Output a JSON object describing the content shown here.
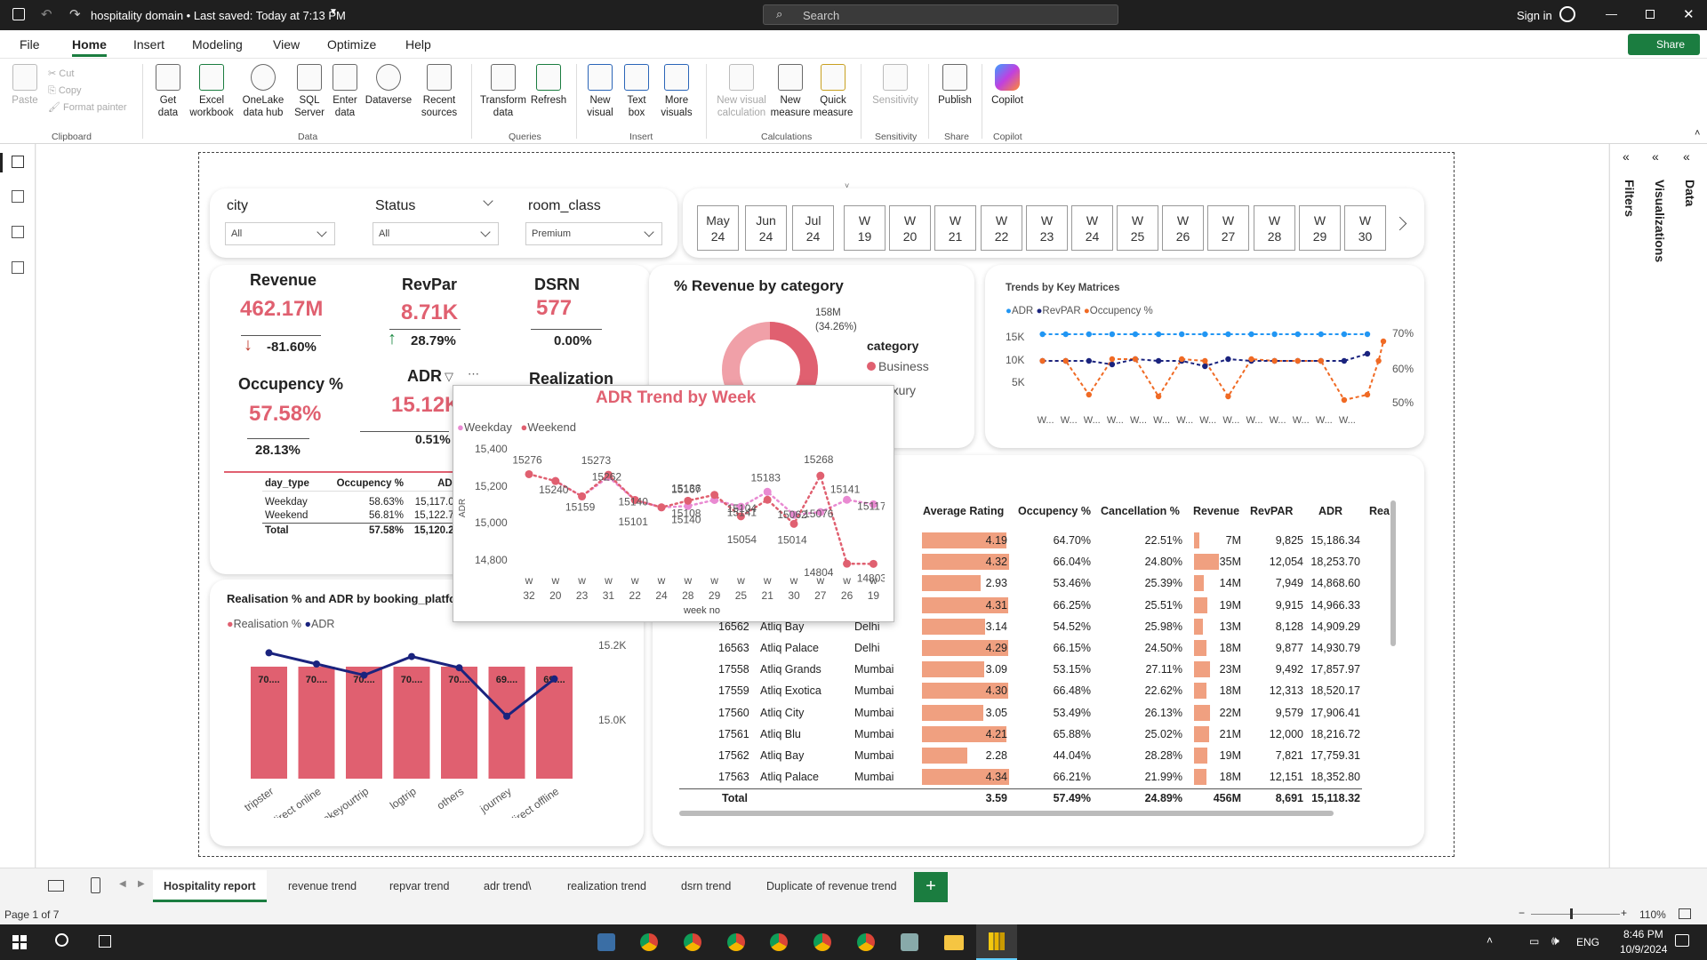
{
  "titlebar": {
    "title": "hospitality domain • Last saved: Today at 7:13 PM",
    "search": "Search",
    "signin": "Sign in",
    "share": "Share"
  },
  "tabs": [
    "File",
    "Home",
    "Insert",
    "Modeling",
    "View",
    "Optimize",
    "Help"
  ],
  "ribbon": {
    "clipboard": {
      "paste": "Paste",
      "cut": "Cut",
      "copy": "Copy",
      "format_painter": "Format painter",
      "label": "Clipboard"
    },
    "data": {
      "get_data": "Get data",
      "excel": "Excel workbook",
      "onelake": "OneLake data hub",
      "sql": "SQL Server",
      "enter": "Enter data",
      "dataverse": "Dataverse",
      "recent": "Recent sources",
      "label": "Data"
    },
    "queries": {
      "transform": "Transform data",
      "refresh": "Refresh",
      "label": "Queries"
    },
    "insert": {
      "new_visual": "New visual",
      "text_box": "Text box",
      "more_visuals": "More visuals",
      "label": "Insert"
    },
    "calculations": {
      "new_visual_calc": "New visual calculation",
      "new_measure": "New measure",
      "quick_measure": "Quick measure",
      "label": "Calculations"
    },
    "sensitivity": {
      "btn": "Sensitivity",
      "label": "Sensitivity"
    },
    "share": {
      "publish": "Publish",
      "label": "Share"
    },
    "copilot": {
      "btn": "Copilot",
      "label": "Copilot"
    }
  },
  "slicers": {
    "city": {
      "label": "city",
      "value": "All"
    },
    "status": {
      "label": "Status",
      "value": "All"
    },
    "room_class": {
      "label": "room_class",
      "value": "Premium"
    }
  },
  "weeks": [
    {
      "l1": "May",
      "l2": "24"
    },
    {
      "l1": "Jun",
      "l2": "24"
    },
    {
      "l1": "Jul",
      "l2": "24"
    },
    {
      "l1": "W",
      "l2": "19"
    },
    {
      "l1": "W",
      "l2": "20"
    },
    {
      "l1": "W",
      "l2": "21"
    },
    {
      "l1": "W",
      "l2": "22"
    },
    {
      "l1": "W",
      "l2": "23"
    },
    {
      "l1": "W",
      "l2": "24"
    },
    {
      "l1": "W",
      "l2": "25"
    },
    {
      "l1": "W",
      "l2": "26"
    },
    {
      "l1": "W",
      "l2": "27"
    },
    {
      "l1": "W",
      "l2": "28"
    },
    {
      "l1": "W",
      "l2": "29"
    },
    {
      "l1": "W",
      "l2": "30"
    }
  ],
  "kpis": {
    "revenue": {
      "title": "Revenue",
      "value": "462.17M",
      "change": "-81.60%"
    },
    "revpar": {
      "title": "RevPar",
      "value": "8.71K",
      "change": "28.79%"
    },
    "dsrn": {
      "title": "DSRN",
      "value": "577",
      "change": "0.00%"
    },
    "occupancy": {
      "title": "Occupency %",
      "value": "57.58%",
      "change": "28.13%"
    },
    "adr": {
      "title": "ADR",
      "value": "15.12K",
      "change": "0.51%"
    },
    "realization": {
      "title": "Realization"
    }
  },
  "day_table": {
    "headers": [
      "day_type",
      "Occupency %",
      "ADR"
    ],
    "rows": [
      [
        "Weekday",
        "58.63%",
        "15,117.06"
      ],
      [
        "Weekend",
        "56.81%",
        "15,122.72"
      ]
    ],
    "total": [
      "Total",
      "57.58%",
      "15,120.28"
    ]
  },
  "donut": {
    "title": "% Revenue by category",
    "legend_title": "category",
    "label": "158M",
    "label_pct": "(34.26%)",
    "items": [
      "Business",
      "Luxury"
    ],
    "colors": [
      "#e06070",
      "#f0a0a8"
    ]
  },
  "trends": {
    "title": "Trends by Key Matrices",
    "legend": [
      "ADR",
      "RevPAR",
      "Occupency %"
    ],
    "y_left": [
      "15K",
      "10K",
      "5K"
    ],
    "y_right": [
      "70%",
      "60%",
      "50%"
    ],
    "xlabel": "W..."
  },
  "adr_trend": {
    "title": "ADR Trend by Week",
    "legend": [
      "Weekday",
      "Weekend"
    ],
    "ylabel": "ADR",
    "xlabel": "week no",
    "yticks": [
      "15,400",
      "15,200",
      "15,000",
      "14,800"
    ]
  },
  "realisation": {
    "title": "Realisation % and ADR by booking_platform",
    "legend": [
      "Realisation %",
      "ADR"
    ],
    "y_right": [
      "15.2K",
      "15.0K"
    ]
  },
  "hotel_table": {
    "headers": [
      "Average Rating",
      "Occupency %",
      "Cancellation %",
      "Revenue",
      "RevPAR",
      "ADR",
      "Rea"
    ],
    "rows": [
      {
        "id": "",
        "name": "",
        "city": "",
        "rating": "4.19",
        "occ": "64.70%",
        "canc": "22.51%",
        "rev": "7M",
        "revpar": "9,825",
        "adr": "15,186.34"
      },
      {
        "id": "",
        "name": "",
        "city": "i",
        "rating": "4.32",
        "occ": "66.04%",
        "canc": "24.80%",
        "rev": "35M",
        "revpar": "12,054",
        "adr": "18,253.70"
      },
      {
        "id": "",
        "name": "",
        "city": "",
        "rating": "2.93",
        "occ": "53.46%",
        "canc": "25.39%",
        "rev": "14M",
        "revpar": "7,949",
        "adr": "14,868.60"
      },
      {
        "id": "",
        "name": "",
        "city": "",
        "rating": "4.31",
        "occ": "66.25%",
        "canc": "25.51%",
        "rev": "19M",
        "revpar": "9,915",
        "adr": "14,966.33"
      },
      {
        "id": "16562",
        "name": "Atliq Bay",
        "city": "Delhi",
        "rating": "3.14",
        "occ": "54.52%",
        "canc": "25.98%",
        "rev": "13M",
        "revpar": "8,128",
        "adr": "14,909.29"
      },
      {
        "id": "16563",
        "name": "Atliq Palace",
        "city": "Delhi",
        "rating": "4.29",
        "occ": "66.15%",
        "canc": "24.50%",
        "rev": "18M",
        "revpar": "9,877",
        "adr": "14,930.79"
      },
      {
        "id": "17558",
        "name": "Atliq Grands",
        "city": "Mumbai",
        "rating": "3.09",
        "occ": "53.15%",
        "canc": "27.11%",
        "rev": "23M",
        "revpar": "9,492",
        "adr": "17,857.97"
      },
      {
        "id": "17559",
        "name": "Atliq Exotica",
        "city": "Mumbai",
        "rating": "4.30",
        "occ": "66.48%",
        "canc": "22.62%",
        "rev": "18M",
        "revpar": "12,313",
        "adr": "18,520.17"
      },
      {
        "id": "17560",
        "name": "Atliq City",
        "city": "Mumbai",
        "rating": "3.05",
        "occ": "53.49%",
        "canc": "26.13%",
        "rev": "22M",
        "revpar": "9,579",
        "adr": "17,906.41"
      },
      {
        "id": "17561",
        "name": "Atliq Blu",
        "city": "Mumbai",
        "rating": "4.21",
        "occ": "65.88%",
        "canc": "25.02%",
        "rev": "21M",
        "revpar": "12,000",
        "adr": "18,216.72"
      },
      {
        "id": "17562",
        "name": "Atliq Bay",
        "city": "Mumbai",
        "rating": "2.28",
        "occ": "44.04%",
        "canc": "28.28%",
        "rev": "19M",
        "revpar": "7,821",
        "adr": "17,759.31"
      },
      {
        "id": "17563",
        "name": "Atliq Palace",
        "city": "Mumbai",
        "rating": "4.34",
        "occ": "66.21%",
        "canc": "21.99%",
        "rev": "18M",
        "revpar": "12,151",
        "adr": "18,352.80"
      }
    ],
    "total": {
      "label": "Total",
      "rating": "3.59",
      "occ": "57.49%",
      "canc": "24.89%",
      "rev": "456M",
      "revpar": "8,691",
      "adr": "15,118.32"
    }
  },
  "panes": {
    "filters": "Filters",
    "visualizations": "Visualizations",
    "data": "Data"
  },
  "page_tabs": [
    "Hospitality report",
    "revenue trend",
    "repvar trend",
    "adr trend\\",
    "realization trend",
    "dsrn trend",
    "Duplicate of revenue trend"
  ],
  "status": {
    "page": "Page 1 of 7",
    "zoom": "110%"
  },
  "taskbar": {
    "lang": "ENG",
    "time": "8:46 PM",
    "date": "10/9/2024"
  },
  "chart_data": [
    {
      "type": "line",
      "title": "ADR Trend by Week",
      "xlabel": "week no",
      "ylabel": "ADR",
      "categories": [
        "w 32",
        "w 20",
        "w 23",
        "w 31",
        "w 22",
        "w 24",
        "w 28",
        "w 29",
        "w 25",
        "w 21",
        "w 30",
        "w 27",
        "w 26",
        "w 19"
      ],
      "series": [
        {
          "name": "Weekday",
          "values": [
            null,
            15240,
            15159,
            15262,
            15140,
            15101,
            15108,
            15140,
            15104,
            15183,
            15062,
            15076,
            15141,
            15117
          ]
        },
        {
          "name": "Weekend",
          "values": [
            15276,
            15240,
            15159,
            15273,
            15140,
            15101,
            15136,
            15167,
            15054,
            15141,
            15014,
            15268,
            14804,
            14803
          ]
        }
      ],
      "ylim": [
        14800,
        15400
      ]
    },
    {
      "type": "bar",
      "title": "Realisation % and ADR by booking_platform",
      "categories": [
        "tripster",
        "direct online",
        "makeyourtrip",
        "logtrip",
        "others",
        "journey",
        "direct offline"
      ],
      "series": [
        {
          "name": "Realisation %",
          "labels": [
            "70....",
            "70....",
            "70....",
            "70....",
            "70....",
            "69....",
            "69...."
          ]
        },
        {
          "name": "ADR",
          "values": [
            15180,
            15150,
            15120,
            15170,
            15140,
            15010,
            15110
          ]
        }
      ]
    },
    {
      "type": "pie",
      "title": "% Revenue by category",
      "categories": [
        "Business",
        "Luxury"
      ],
      "values": [
        158,
        304
      ]
    },
    {
      "type": "line",
      "title": "Trends by Key Matrices",
      "series": [
        {
          "name": "ADR"
        },
        {
          "name": "RevPAR"
        },
        {
          "name": "Occupency %"
        }
      ]
    }
  ]
}
